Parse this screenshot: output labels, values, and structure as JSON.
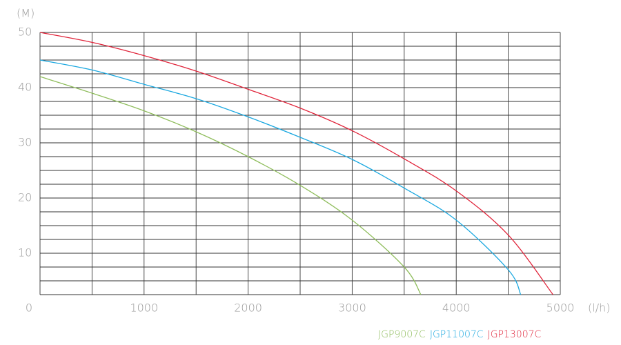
{
  "chart_data": {
    "type": "line",
    "y_axis_label": "(M)",
    "x_axis_label": "(l/h)",
    "xlim": [
      0,
      5000
    ],
    "xticks": [
      0,
      1000,
      2000,
      3000,
      4000,
      5000
    ],
    "ylim": [
      2.5,
      50
    ],
    "yticks": [
      10,
      20,
      30,
      40,
      50
    ],
    "x_grid": [
      0,
      500,
      1000,
      1500,
      2000,
      2500,
      3000,
      3500,
      4000,
      4500,
      5000
    ],
    "y_grid": [
      2.5,
      5,
      7.5,
      10,
      12.5,
      15,
      17.5,
      20,
      22.5,
      25,
      27.5,
      30,
      32.5,
      35,
      37.5,
      40,
      42.5,
      45,
      47.5,
      50
    ],
    "series": [
      {
        "name": "JGP9007C",
        "color": "#8fbd5c",
        "x": [
          0,
          500,
          1000,
          1500,
          2000,
          2500,
          3000,
          3500,
          3660
        ],
        "values": [
          42,
          39,
          35.8,
          32,
          27.5,
          22.3,
          16,
          7.5,
          2.5
        ]
      },
      {
        "name": "JGP11007C",
        "color": "#1ba8e0",
        "x": [
          0,
          500,
          1000,
          1500,
          2000,
          2500,
          3000,
          3500,
          4000,
          4500,
          4620
        ],
        "values": [
          45,
          43.2,
          40.6,
          38,
          34.7,
          31,
          27,
          21.8,
          16,
          7,
          2.5
        ]
      },
      {
        "name": "JGP13007C",
        "color": "#e0243a",
        "x": [
          0,
          500,
          1000,
          1500,
          2000,
          2500,
          3000,
          3500,
          4000,
          4500,
          4930
        ],
        "values": [
          50,
          48.2,
          45.8,
          43,
          39.7,
          36.3,
          32.2,
          27.1,
          21.3,
          13.3,
          2.5
        ]
      }
    ]
  }
}
